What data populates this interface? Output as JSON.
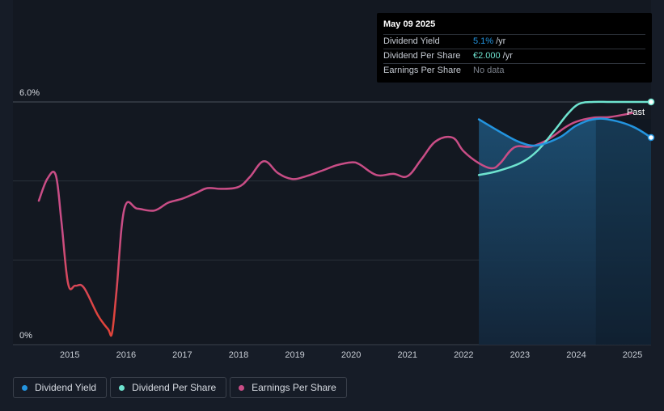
{
  "chart_data": {
    "type": "line",
    "title": "",
    "x_ticks": [
      "2015",
      "2016",
      "2017",
      "2018",
      "2019",
      "2020",
      "2021",
      "2022",
      "2023",
      "2024",
      "2025"
    ],
    "y_ticks": [
      "6.0%",
      "0%"
    ],
    "ylim": [
      0,
      6.0
    ],
    "xlim": [
      2014.45,
      2025.33
    ],
    "past_label": "Past",
    "forecast_start": 2022.27,
    "series": [
      {
        "name": "Dividend Yield",
        "color": "#2394df",
        "points": [
          [
            2022.27,
            5.56
          ],
          [
            2022.7,
            5.2
          ],
          [
            2023.0,
            4.98
          ],
          [
            2023.3,
            4.9
          ],
          [
            2023.7,
            5.1
          ],
          [
            2024.0,
            5.4
          ],
          [
            2024.3,
            5.56
          ],
          [
            2024.6,
            5.55
          ],
          [
            2025.0,
            5.38
          ],
          [
            2025.33,
            5.1
          ]
        ]
      },
      {
        "name": "Dividend Per Share",
        "color": "#6ee3cf",
        "points": [
          [
            2022.27,
            4.15
          ],
          [
            2022.6,
            4.25
          ],
          [
            2023.0,
            4.45
          ],
          [
            2023.3,
            4.75
          ],
          [
            2023.6,
            5.25
          ],
          [
            2023.85,
            5.7
          ],
          [
            2024.05,
            5.95
          ],
          [
            2024.3,
            6.0
          ],
          [
            2024.6,
            6.0
          ],
          [
            2025.0,
            6.0
          ],
          [
            2025.33,
            6.0
          ]
        ]
      },
      {
        "name": "Earnings Per Share",
        "color": "#c94d86",
        "points": [
          [
            2014.45,
            3.5
          ],
          [
            2014.6,
            4.05
          ],
          [
            2014.75,
            4.15
          ],
          [
            2014.85,
            3.0
          ],
          [
            2014.97,
            1.4
          ],
          [
            2015.1,
            1.35
          ],
          [
            2015.25,
            1.3
          ],
          [
            2015.5,
            0.6
          ],
          [
            2015.68,
            0.25
          ],
          [
            2015.75,
            0.15
          ],
          [
            2015.83,
            1.2
          ],
          [
            2015.97,
            3.3
          ],
          [
            2016.2,
            3.3
          ],
          [
            2016.5,
            3.25
          ],
          [
            2016.75,
            3.45
          ],
          [
            2017.0,
            3.55
          ],
          [
            2017.25,
            3.7
          ],
          [
            2017.45,
            3.82
          ],
          [
            2017.7,
            3.8
          ],
          [
            2018.0,
            3.85
          ],
          [
            2018.2,
            4.1
          ],
          [
            2018.45,
            4.5
          ],
          [
            2018.7,
            4.2
          ],
          [
            2018.95,
            4.05
          ],
          [
            2019.2,
            4.12
          ],
          [
            2019.5,
            4.27
          ],
          [
            2019.75,
            4.4
          ],
          [
            2020.0,
            4.47
          ],
          [
            2020.15,
            4.42
          ],
          [
            2020.45,
            4.15
          ],
          [
            2020.75,
            4.18
          ],
          [
            2021.0,
            4.12
          ],
          [
            2021.25,
            4.55
          ],
          [
            2021.5,
            5.0
          ],
          [
            2021.8,
            5.1
          ],
          [
            2022.0,
            4.75
          ],
          [
            2022.27,
            4.45
          ],
          [
            2022.5,
            4.32
          ],
          [
            2022.65,
            4.45
          ],
          [
            2022.9,
            4.85
          ],
          [
            2023.2,
            4.87
          ],
          [
            2023.5,
            5.05
          ],
          [
            2023.8,
            5.35
          ],
          [
            2024.0,
            5.5
          ],
          [
            2024.3,
            5.6
          ],
          [
            2024.6,
            5.62
          ],
          [
            2025.0,
            5.72
          ]
        ]
      }
    ],
    "end_markers": [
      "Dividend Yield",
      "Dividend Per Share"
    ]
  },
  "tooltip": {
    "date": "May 09 2025",
    "rows": [
      {
        "label": "Dividend Yield",
        "value": "5.1%",
        "unit": "/yr",
        "color": "#2394df"
      },
      {
        "label": "Dividend Per Share",
        "value": "€2.000",
        "unit": "/yr",
        "color": "#6ee3cf"
      },
      {
        "label": "Earnings Per Share",
        "value": "No data",
        "unit": "",
        "color": "#7d838d"
      }
    ]
  },
  "legend": [
    {
      "label": "Dividend Yield",
      "color": "#2394df"
    },
    {
      "label": "Dividend Per Share",
      "color": "#6ee3cf"
    },
    {
      "label": "Earnings Per Share",
      "color": "#c94d86"
    }
  ]
}
